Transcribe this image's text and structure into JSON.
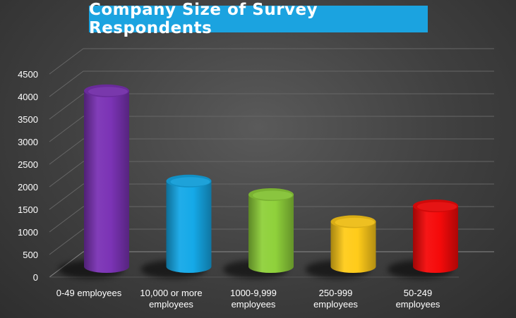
{
  "chart_data": {
    "type": "bar",
    "title": "Company Size of Survey Respondents",
    "categories": [
      "0-49 employees",
      "10,000 or more employees",
      "1000-9,999 employees",
      "250-999 employees",
      "50-249 employees"
    ],
    "category_lines": [
      [
        "0-49 employees"
      ],
      [
        "10,000 or more",
        "employees"
      ],
      [
        "1000-9,999",
        "employees"
      ],
      [
        "250-999",
        "employees"
      ],
      [
        "50-249",
        "employees"
      ]
    ],
    "values": [
      4300,
      2300,
      2000,
      1400,
      1750
    ],
    "colors": [
      "#7b33b5",
      "#15a9e8",
      "#8fd13b",
      "#ffcb1a",
      "#f50a0a"
    ],
    "ylim": [
      0,
      4500
    ],
    "yticks": [
      "0",
      "500",
      "1000",
      "1500",
      "2000",
      "2500",
      "3000",
      "3500",
      "4000",
      "4500"
    ],
    "grid": true,
    "xlabel": "",
    "ylabel": ""
  }
}
